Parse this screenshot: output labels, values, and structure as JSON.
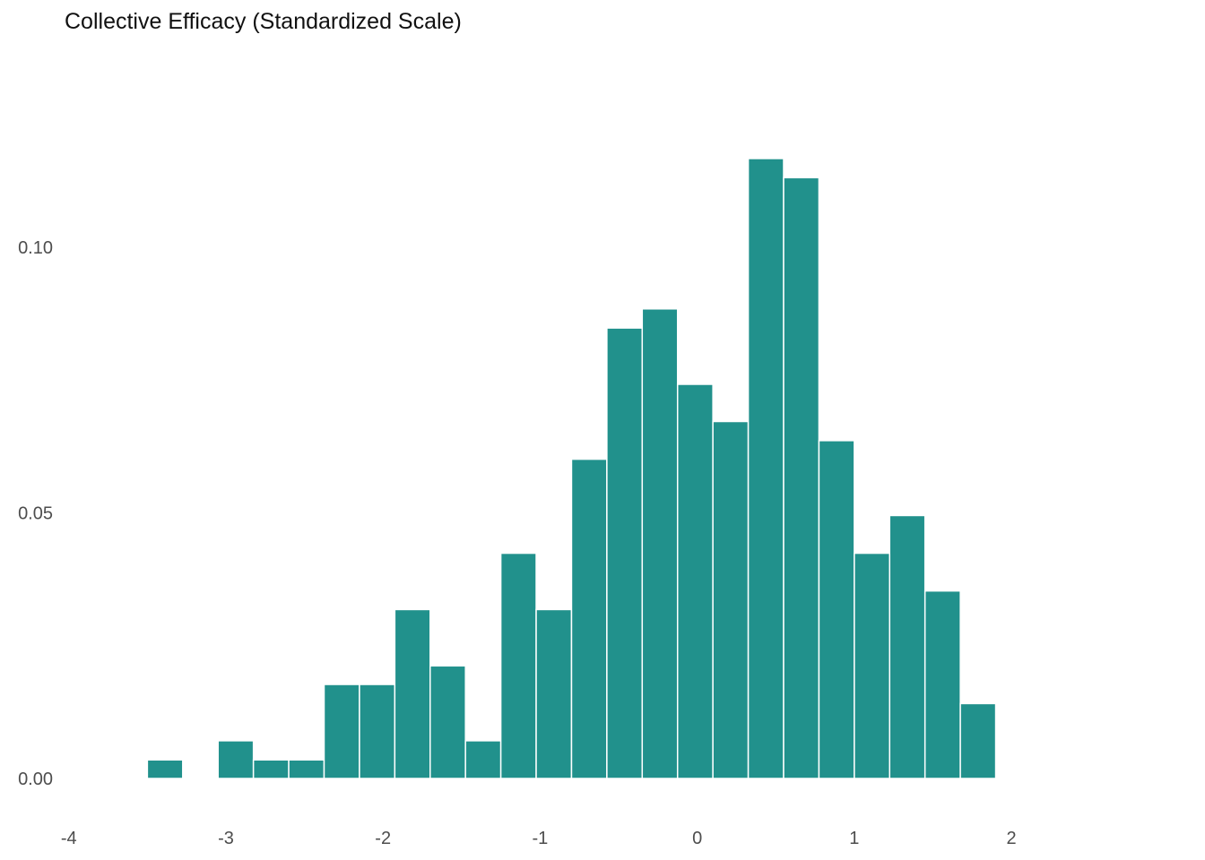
{
  "chart_data": {
    "type": "bar",
    "title": "Collective Efficacy (Standardized Scale)",
    "xlabel": "",
    "ylabel": "",
    "bar_color": "#21918c",
    "bar_edge_color": "#ffffff",
    "background": "#ffffff",
    "grid": false,
    "legend": "none",
    "xlim": [
      -4.05,
      2.85
    ],
    "ylim": [
      0,
      0.127
    ],
    "x_ticks": [
      -4,
      -3,
      -2,
      -1,
      0,
      1,
      2
    ],
    "y_ticks": [
      0.0,
      0.05,
      0.1
    ],
    "y_tick_labels": [
      "0.00",
      "0.05",
      "0.10"
    ],
    "bins": [
      {
        "x0": -3.5,
        "x1": -3.275,
        "value": 0.0035
      },
      {
        "x0": -3.275,
        "x1": -3.05,
        "value": 0.0
      },
      {
        "x0": -3.05,
        "x1": -2.825,
        "value": 0.0071
      },
      {
        "x0": -2.825,
        "x1": -2.6,
        "value": 0.0035
      },
      {
        "x0": -2.6,
        "x1": -2.375,
        "value": 0.0035
      },
      {
        "x0": -2.375,
        "x1": -2.15,
        "value": 0.0177
      },
      {
        "x0": -2.15,
        "x1": -1.925,
        "value": 0.0177
      },
      {
        "x0": -1.925,
        "x1": -1.7,
        "value": 0.0318
      },
      {
        "x0": -1.7,
        "x1": -1.475,
        "value": 0.0212
      },
      {
        "x0": -1.475,
        "x1": -1.25,
        "value": 0.0071
      },
      {
        "x0": -1.25,
        "x1": -1.025,
        "value": 0.0424
      },
      {
        "x0": -1.025,
        "x1": -0.8,
        "value": 0.0318
      },
      {
        "x0": -0.8,
        "x1": -0.575,
        "value": 0.0601
      },
      {
        "x0": -0.575,
        "x1": -0.35,
        "value": 0.0848
      },
      {
        "x0": -0.35,
        "x1": -0.125,
        "value": 0.0884
      },
      {
        "x0": -0.125,
        "x1": 0.1,
        "value": 0.0742
      },
      {
        "x0": 0.1,
        "x1": 0.325,
        "value": 0.0672
      },
      {
        "x0": 0.325,
        "x1": 0.55,
        "value": 0.1167
      },
      {
        "x0": 0.55,
        "x1": 0.775,
        "value": 0.1131
      },
      {
        "x0": 0.775,
        "x1": 1.0,
        "value": 0.0636
      },
      {
        "x0": 1.0,
        "x1": 1.225,
        "value": 0.0424
      },
      {
        "x0": 1.225,
        "x1": 1.45,
        "value": 0.0495
      },
      {
        "x0": 1.45,
        "x1": 1.675,
        "value": 0.0353
      },
      {
        "x0": 1.675,
        "x1": 1.9,
        "value": 0.0141
      }
    ]
  }
}
